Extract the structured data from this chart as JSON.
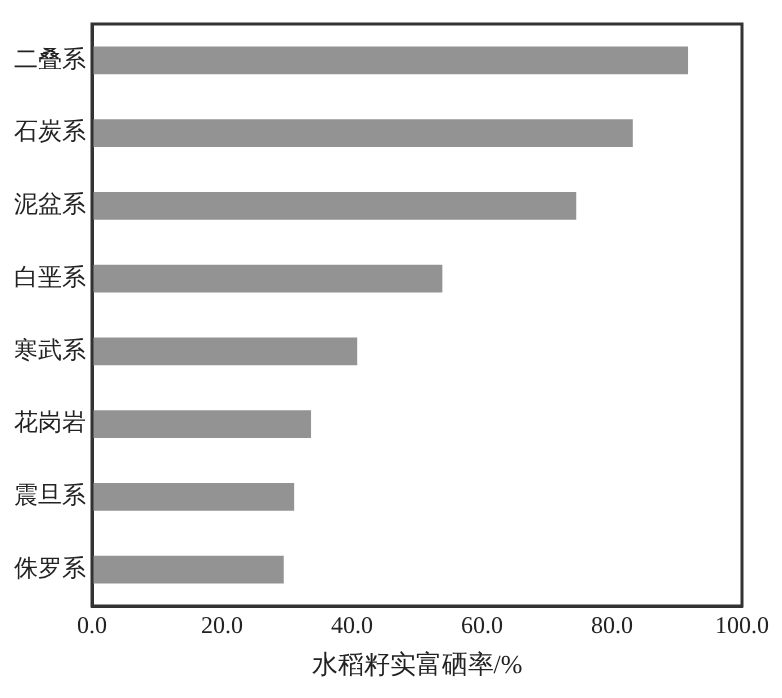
{
  "chart_data": {
    "type": "bar",
    "orientation": "horizontal",
    "xlabel": "水稻籽实富硒率/%",
    "categories": [
      "二叠系",
      "石炭系",
      "泥盆系",
      "白垩系",
      "寒武系",
      "花岗岩",
      "震旦系",
      "侏罗系"
    ],
    "values": [
      91.7,
      83.2,
      74.5,
      53.9,
      40.8,
      33.7,
      31.1,
      29.5
    ],
    "color": "#939393",
    "xlim": [
      0,
      100
    ],
    "xticks": [
      {
        "value": 0,
        "label": "0.0"
      },
      {
        "value": 20,
        "label": "20.0"
      },
      {
        "value": 40,
        "label": "40.0"
      },
      {
        "value": 60,
        "label": "60.0"
      },
      {
        "value": 80,
        "label": "80.0"
      },
      {
        "value": 100,
        "label": "100.0"
      }
    ],
    "grid": false,
    "legend": false
  }
}
